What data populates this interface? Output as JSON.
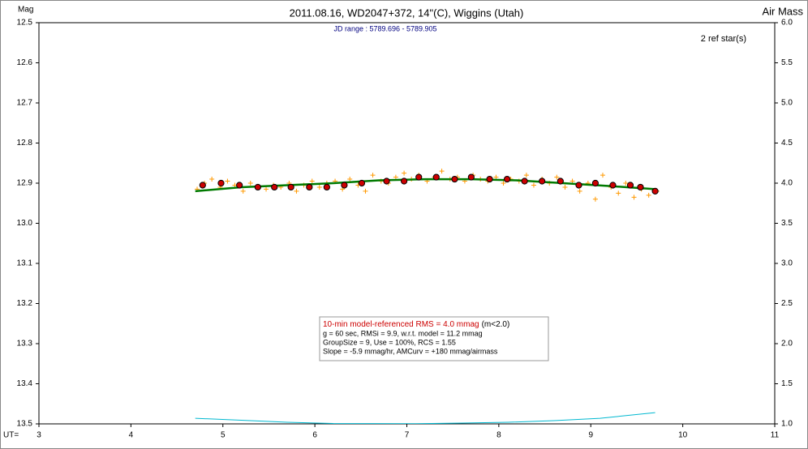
{
  "chart_data": {
    "type": "scatter",
    "title": "2011.08.16, WD2047+372, 14\"(C), Wiggins (Utah)",
    "subtitle": "JD range : 5789.696 - 5789.905",
    "ref_note": "2 ref star(s)",
    "ylabel": "Mag",
    "y2label": "Air Mass",
    "xlabel": "UT=",
    "xlim": [
      3,
      11
    ],
    "xticks": [
      3,
      4,
      5,
      6,
      7,
      8,
      9,
      10,
      11
    ],
    "ylim": [
      13.5,
      12.5
    ],
    "yticks": [
      12.5,
      12.6,
      12.7,
      12.8,
      12.9,
      {
        "value": 13,
        "label": "13.0"
      },
      13.1,
      13.2,
      13.3,
      13.4,
      13.5
    ],
    "y2lim": [
      1,
      6
    ],
    "y2ticks": [
      {
        "value": 1,
        "label": "1.0"
      },
      1.5,
      {
        "value": 2,
        "label": "2.0"
      },
      2.5,
      {
        "value": 3,
        "label": "3.0"
      },
      3.5,
      {
        "value": 4,
        "label": "4.0"
      },
      4.5,
      {
        "value": 5,
        "label": "5.0"
      },
      5.5,
      {
        "value": 6,
        "label": "6.0"
      }
    ],
    "annotations": [
      "10-min model-referenced RMS = 4.0 mmag",
      "(m<2.0)",
      "g = 60 sec, RMSi = 9.9, w.r.t. model = 11.2 mmag",
      "GroupSize = 9, Use = 100%, RCS = 1.55",
      "Slope = -5.9 mmag/hr, AMCurv = +180 mmag/airmass"
    ],
    "series": [
      {
        "kind": "line",
        "color": "#00b8d0",
        "axis": "y2",
        "x": [
          4.7,
          5.2,
          5.7,
          6.2,
          7.1,
          7.6,
          8.1,
          8.6,
          9.1,
          9.7
        ],
        "values": [
          1.07,
          1.045,
          1.02,
          1.005,
          1.002,
          1.01,
          1.02,
          1.04,
          1.07,
          1.14
        ]
      },
      {
        "kind": "scatter",
        "marker": "plus",
        "color": "#ff9900",
        "x": [
          4.72,
          4.8,
          4.88,
          4.97,
          5.05,
          5.13,
          5.22,
          5.3,
          5.38,
          5.47,
          5.55,
          5.63,
          5.72,
          5.8,
          5.88,
          5.97,
          6.05,
          6.13,
          6.22,
          6.3,
          6.38,
          6.47,
          6.55,
          6.63,
          6.72,
          6.8,
          6.88,
          6.97,
          7.05,
          7.13,
          7.22,
          7.3,
          7.38,
          7.47,
          7.55,
          7.63,
          7.72,
          7.8,
          7.88,
          7.97,
          8.05,
          8.13,
          8.22,
          8.3,
          8.38,
          8.47,
          8.55,
          8.63,
          8.72,
          8.8,
          8.88,
          8.97,
          9.05,
          9.13,
          9.22,
          9.3,
          9.38,
          9.47,
          9.55,
          9.63,
          9.72
        ],
        "values": [
          12.915,
          12.9,
          12.89,
          12.91,
          12.895,
          12.905,
          12.92,
          12.9,
          12.91,
          12.915,
          12.905,
          12.91,
          12.9,
          12.92,
          12.905,
          12.895,
          12.91,
          12.9,
          12.895,
          12.915,
          12.89,
          12.905,
          12.92,
          12.88,
          12.895,
          12.9,
          12.885,
          12.875,
          12.89,
          12.88,
          12.895,
          12.885,
          12.87,
          12.89,
          12.885,
          12.895,
          12.88,
          12.89,
          12.895,
          12.885,
          12.9,
          12.89,
          12.895,
          12.88,
          12.905,
          12.89,
          12.9,
          12.885,
          12.91,
          12.895,
          12.92,
          12.9,
          12.94,
          12.88,
          12.91,
          12.925,
          12.9,
          12.935,
          12.915,
          12.93,
          12.92
        ]
      },
      {
        "kind": "line",
        "color": "#007a00",
        "x": [
          4.7,
          5.2,
          5.7,
          6.2,
          6.7,
          7.2,
          7.7,
          8.2,
          8.7,
          9.2,
          9.7
        ],
        "values": [
          12.92,
          12.91,
          12.905,
          12.9,
          12.893,
          12.89,
          12.89,
          12.893,
          12.9,
          12.907,
          12.915
        ]
      },
      {
        "kind": "scatter",
        "marker": "circle",
        "color": "#cc0000",
        "x": [
          4.78,
          4.98,
          5.18,
          5.38,
          5.56,
          5.74,
          5.94,
          6.13,
          6.32,
          6.51,
          6.78,
          6.97,
          7.13,
          7.32,
          7.52,
          7.7,
          7.9,
          8.09,
          8.28,
          8.47,
          8.67,
          8.87,
          9.05,
          9.24,
          9.43,
          9.54,
          9.7
        ],
        "values": [
          12.905,
          12.9,
          12.905,
          12.91,
          12.91,
          12.91,
          12.91,
          12.91,
          12.905,
          12.9,
          12.895,
          12.895,
          12.885,
          12.885,
          12.89,
          12.885,
          12.89,
          12.89,
          12.895,
          12.895,
          12.895,
          12.905,
          12.9,
          12.905,
          12.905,
          12.91,
          12.92
        ]
      }
    ]
  }
}
